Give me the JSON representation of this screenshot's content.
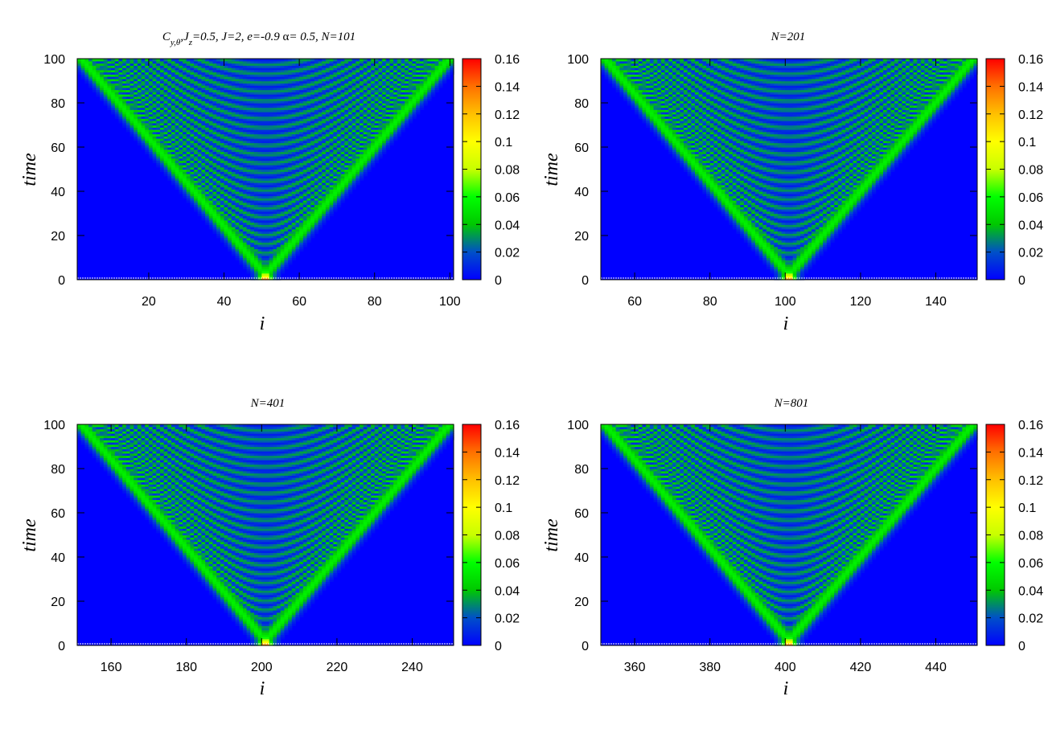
{
  "figure": {
    "colormap": [
      "#0000ff",
      "#00ff00",
      "#ffff00",
      "#ff0000"
    ]
  },
  "chart_data": [
    {
      "type": "heatmap",
      "title": "",
      "title_math": {
        "C": "C",
        "sub1": "y,θ",
        "mid1": ",J",
        "sub2": "z",
        "rest": "=0.5,  J=2, e=-0.9 ",
        "alpha": "α",
        "tail": "= 0.5, N=101"
      },
      "xlabel": "i",
      "ylabel": "time",
      "xlim": [
        1,
        101
      ],
      "ylim": [
        0,
        100
      ],
      "xticks": [
        20,
        40,
        60,
        80,
        100
      ],
      "yticks": [
        0,
        20,
        40,
        60,
        80,
        100
      ],
      "center": 51,
      "half_width": 51,
      "colorbar": {
        "range": [
          0,
          0.16
        ],
        "ticks": [
          "0",
          "0.02",
          "0.04",
          "0.06",
          "0.08",
          "0.1",
          "0.12",
          "0.14",
          "0.16"
        ]
      }
    },
    {
      "type": "heatmap",
      "title": "N=201",
      "xlabel": "i",
      "ylabel": "time",
      "xlim": [
        51,
        151
      ],
      "ylim": [
        0,
        100
      ],
      "xticks": [
        60,
        80,
        100,
        120,
        140
      ],
      "yticks": [
        0,
        20,
        40,
        60,
        80,
        100
      ],
      "center": 101,
      "half_width": 51,
      "colorbar": {
        "range": [
          0,
          0.16
        ],
        "ticks": [
          "0",
          "0.02",
          "0.04",
          "0.06",
          "0.08",
          "0.1",
          "0.12",
          "0.14",
          "0.16"
        ]
      }
    },
    {
      "type": "heatmap",
      "title": "N=401",
      "xlabel": "i",
      "ylabel": "time",
      "xlim": [
        151,
        251
      ],
      "ylim": [
        0,
        100
      ],
      "xticks": [
        160,
        180,
        200,
        220,
        240
      ],
      "yticks": [
        0,
        20,
        40,
        60,
        80,
        100
      ],
      "center": 201,
      "half_width": 51,
      "colorbar": {
        "range": [
          0,
          0.16
        ],
        "ticks": [
          "0",
          "0.02",
          "0.04",
          "0.06",
          "0.08",
          "0.1",
          "0.12",
          "0.14",
          "0.16"
        ]
      }
    },
    {
      "type": "heatmap",
      "title": "N=801",
      "xlabel": "i",
      "ylabel": "time",
      "xlim": [
        351,
        451
      ],
      "ylim": [
        0,
        100
      ],
      "xticks": [
        360,
        380,
        400,
        420,
        440
      ],
      "yticks": [
        0,
        20,
        40,
        60,
        80,
        100
      ],
      "center": 401,
      "half_width": 51,
      "colorbar": {
        "range": [
          0,
          0.16
        ],
        "ticks": [
          "0",
          "0.02",
          "0.04",
          "0.06",
          "0.08",
          "0.1",
          "0.12",
          "0.14",
          "0.16"
        ]
      }
    }
  ]
}
